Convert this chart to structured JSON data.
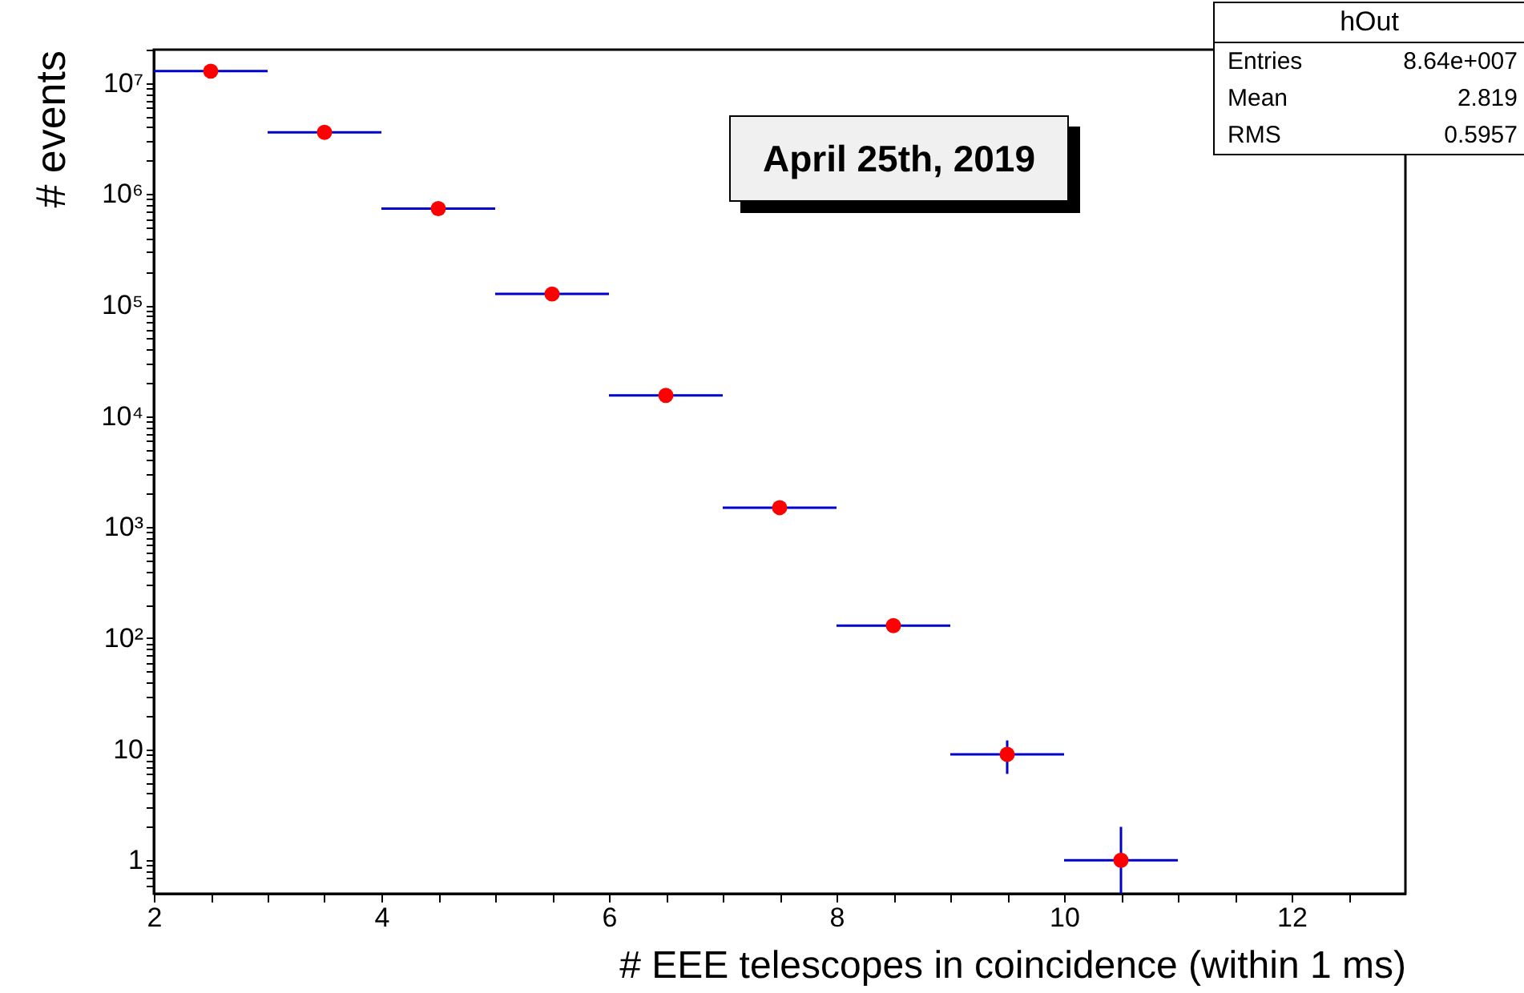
{
  "chart_data": {
    "type": "scatter",
    "xlabel": "# EEE telescopes in coincidence (within 1 ms)",
    "ylabel": "# events",
    "x": [
      2.5,
      3.5,
      4.5,
      5.5,
      6.5,
      7.5,
      8.5,
      9.5,
      10.5
    ],
    "series": [
      {
        "color": "#ff0000",
        "values": [
          12800000,
          3600000,
          740000,
          126000,
          15400,
          1500,
          130,
          9,
          1
        ],
        "errors": [
          null,
          null,
          null,
          null,
          null,
          null,
          null,
          [
            6,
            12
          ],
          [
            0.5,
            2
          ]
        ],
        "xerrors": [
          0.5,
          0.5,
          0.5,
          0.5,
          0.5,
          0.5,
          0.5,
          0.5,
          0.5
        ]
      }
    ],
    "marker": "circle",
    "log": "y",
    "grid": false,
    "legend": false,
    "xlim": [
      2,
      13
    ],
    "xticks": [
      2,
      {
        "value": 2.5,
        "label": null
      },
      {
        "value": 3,
        "label": null
      },
      {
        "value": 3.5,
        "label": null
      },
      4,
      {
        "value": 4.5,
        "label": null
      },
      {
        "value": 5,
        "label": null
      },
      {
        "value": 5.5,
        "label": null
      },
      6,
      {
        "value": 6.5,
        "label": null
      },
      {
        "value": 7,
        "label": null
      },
      {
        "value": 7.5,
        "label": null
      },
      8,
      {
        "value": 8.5,
        "label": null
      },
      {
        "value": 9,
        "label": null
      },
      {
        "value": 9.5,
        "label": null
      },
      10,
      {
        "value": 10.5,
        "label": null
      },
      {
        "value": 11,
        "label": null
      },
      {
        "value": 11.5,
        "label": null
      },
      12,
      {
        "value": 12.5,
        "label": null
      }
    ],
    "ylim": [
      0.5,
      20000000
    ],
    "yticks": [
      {
        "value": 0.6,
        "label": null
      },
      {
        "value": 0.7,
        "label": null
      },
      {
        "value": 0.8,
        "label": null
      },
      {
        "value": 0.9,
        "label": null
      },
      1,
      {
        "value": 2,
        "label": null
      },
      {
        "value": 3,
        "label": null
      },
      {
        "value": 4,
        "label": null
      },
      {
        "value": 5,
        "label": null
      },
      {
        "value": 6,
        "label": null
      },
      {
        "value": 7,
        "label": null
      },
      {
        "value": 8,
        "label": null
      },
      {
        "value": 9,
        "label": null
      },
      10,
      {
        "value": 20,
        "label": null
      },
      {
        "value": 30,
        "label": null
      },
      {
        "value": 40,
        "label": null
      },
      {
        "value": 50,
        "label": null
      },
      {
        "value": 60,
        "label": null
      },
      {
        "value": 70,
        "label": null
      },
      {
        "value": 80,
        "label": null
      },
      {
        "value": 90,
        "label": null
      },
      {
        "value": 100,
        "label": "10²"
      },
      {
        "value": 200,
        "label": null
      },
      {
        "value": 300,
        "label": null
      },
      {
        "value": 400,
        "label": null
      },
      {
        "value": 500,
        "label": null
      },
      {
        "value": 600,
        "label": null
      },
      {
        "value": 700,
        "label": null
      },
      {
        "value": 800,
        "label": null
      },
      {
        "value": 900,
        "label": null
      },
      {
        "value": 1000,
        "label": "10³"
      },
      {
        "value": 2000,
        "label": null
      },
      {
        "value": 3000,
        "label": null
      },
      {
        "value": 4000,
        "label": null
      },
      {
        "value": 5000,
        "label": null
      },
      {
        "value": 6000,
        "label": null
      },
      {
        "value": 7000,
        "label": null
      },
      {
        "value": 8000,
        "label": null
      },
      {
        "value": 9000,
        "label": null
      },
      {
        "value": 10000,
        "label": "10⁴"
      },
      {
        "value": 20000,
        "label": null
      },
      {
        "value": 30000,
        "label": null
      },
      {
        "value": 40000,
        "label": null
      },
      {
        "value": 50000,
        "label": null
      },
      {
        "value": 60000,
        "label": null
      },
      {
        "value": 70000,
        "label": null
      },
      {
        "value": 80000,
        "label": null
      },
      {
        "value": 90000,
        "label": null
      },
      {
        "value": 100000,
        "label": "10⁵"
      },
      {
        "value": 200000,
        "label": null
      },
      {
        "value": 300000,
        "label": null
      },
      {
        "value": 400000,
        "label": null
      },
      {
        "value": 500000,
        "label": null
      },
      {
        "value": 600000,
        "label": null
      },
      {
        "value": 700000,
        "label": null
      },
      {
        "value": 800000,
        "label": null
      },
      {
        "value": 900000,
        "label": null
      },
      {
        "value": 1000000,
        "label": "10⁶"
      },
      {
        "value": 2000000,
        "label": null
      },
      {
        "value": 3000000,
        "label": null
      },
      {
        "value": 4000000,
        "label": null
      },
      {
        "value": 5000000,
        "label": null
      },
      {
        "value": 6000000,
        "label": null
      },
      {
        "value": 7000000,
        "label": null
      },
      {
        "value": 8000000,
        "label": null
      },
      {
        "value": 9000000,
        "label": null
      },
      {
        "value": 10000000,
        "label": "10⁷"
      },
      {
        "value": 20000000,
        "label": null
      }
    ],
    "annotations": [
      "April 25th, 2019",
      "hOut",
      "Entries",
      "8.64e+007",
      "Mean",
      "2.819",
      "RMS",
      "0.5957"
    ]
  }
}
